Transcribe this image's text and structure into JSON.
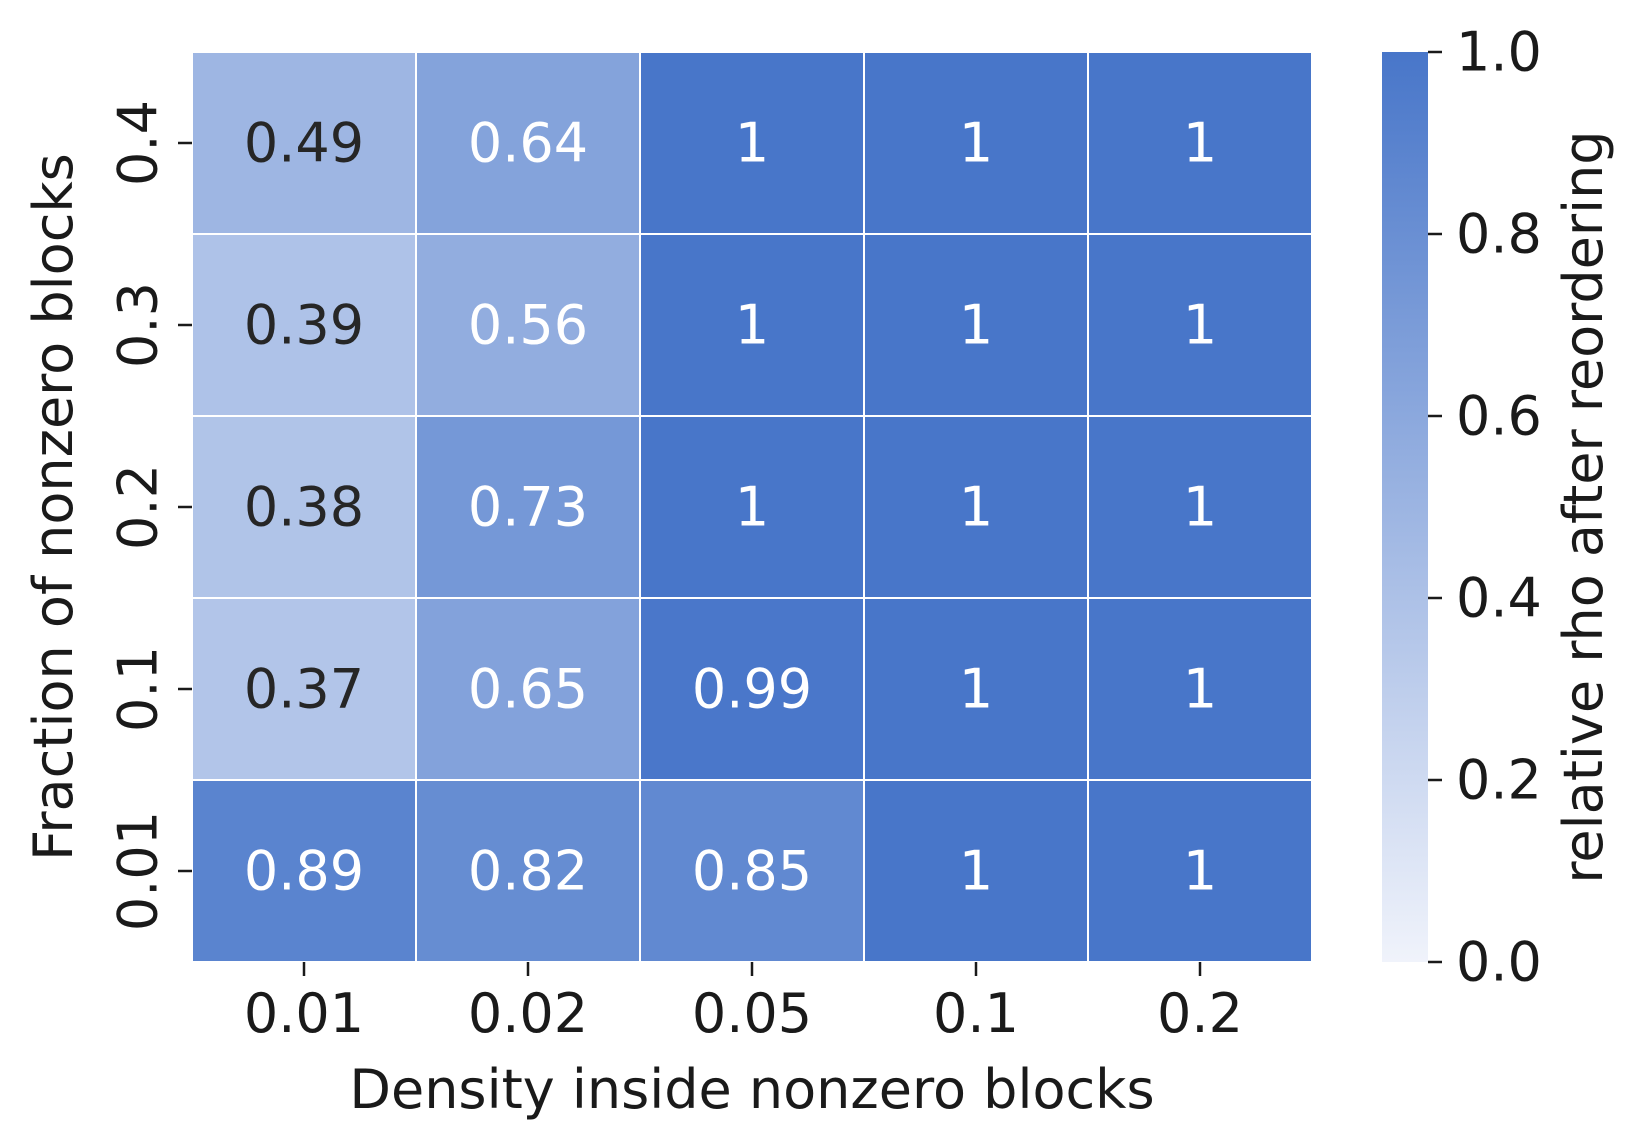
{
  "chart_data": {
    "type": "heatmap",
    "title": "",
    "xlabel": "Density inside nonzero blocks",
    "ylabel": "Fraction of nonzero blocks",
    "x_categories": [
      "0.01",
      "0.02",
      "0.05",
      "0.1",
      "0.2"
    ],
    "y_categories": [
      "0.4",
      "0.3",
      "0.2",
      "0.1",
      "0.01"
    ],
    "values": [
      [
        0.49,
        0.64,
        1.0,
        1.0,
        1.0
      ],
      [
        0.39,
        0.56,
        1.0,
        1.0,
        1.0
      ],
      [
        0.38,
        0.73,
        1.0,
        1.0,
        1.0
      ],
      [
        0.37,
        0.65,
        0.99,
        1.0,
        1.0
      ],
      [
        0.89,
        0.82,
        0.85,
        1.0,
        1.0
      ]
    ],
    "annotations": [
      [
        "0.49",
        "0.64",
        "1",
        "1",
        "1"
      ],
      [
        "0.39",
        "0.56",
        "1",
        "1",
        "1"
      ],
      [
        "0.38",
        "0.73",
        "1",
        "1",
        "1"
      ],
      [
        "0.37",
        "0.65",
        "0.99",
        "1",
        "1"
      ],
      [
        "0.89",
        "0.82",
        "0.85",
        "1",
        "1"
      ]
    ],
    "colorbar": {
      "label": "relative rho after reordering",
      "range": [
        0.0,
        1.0
      ],
      "ticks": [
        "0.0",
        "0.2",
        "0.4",
        "0.6",
        "0.8",
        "1.0"
      ],
      "color_low": "#f0f3fb",
      "color_high": "#4876c9"
    },
    "grid": true,
    "dark_text_color": "#262626",
    "light_text_color": "#ffffff"
  }
}
